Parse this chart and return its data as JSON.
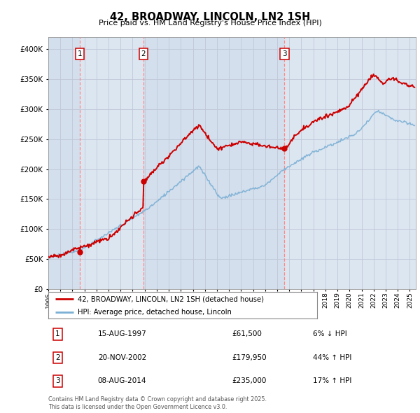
{
  "title": "42, BROADWAY, LINCOLN, LN2 1SH",
  "subtitle": "Price paid vs. HM Land Registry's House Price Index (HPI)",
  "sale_label": "42, BROADWAY, LINCOLN, LN2 1SH (detached house)",
  "hpi_label": "HPI: Average price, detached house, Lincoln",
  "footnote": "Contains HM Land Registry data © Crown copyright and database right 2025.\nThis data is licensed under the Open Government Licence v3.0.",
  "sale_annotations": [
    {
      "num": "1",
      "date": "15-AUG-1997",
      "price": "£61,500",
      "pct": "6% ↓ HPI"
    },
    {
      "num": "2",
      "date": "20-NOV-2002",
      "price": "£179,950",
      "pct": "44% ↑ HPI"
    },
    {
      "num": "3",
      "date": "08-AUG-2014",
      "price": "£235,000",
      "pct": "17% ↑ HPI"
    }
  ],
  "vline_dates": [
    1997.62,
    2002.89,
    2014.6
  ],
  "sale_prices": [
    61500,
    179950,
    235000
  ],
  "sale_dates": [
    1997.62,
    2002.89,
    2014.6
  ],
  "xmin": 1995,
  "xmax": 2025.5,
  "ymin": 0,
  "ymax": 420000,
  "sale_color": "#cc0000",
  "hpi_color": "#7bafd4",
  "bg_color": "#dce6f1",
  "bg_color2": "#ccd9eb",
  "plot_bg": "#ffffff",
  "vline_color": "#ff8888",
  "grid_color": "#c0c8d8"
}
